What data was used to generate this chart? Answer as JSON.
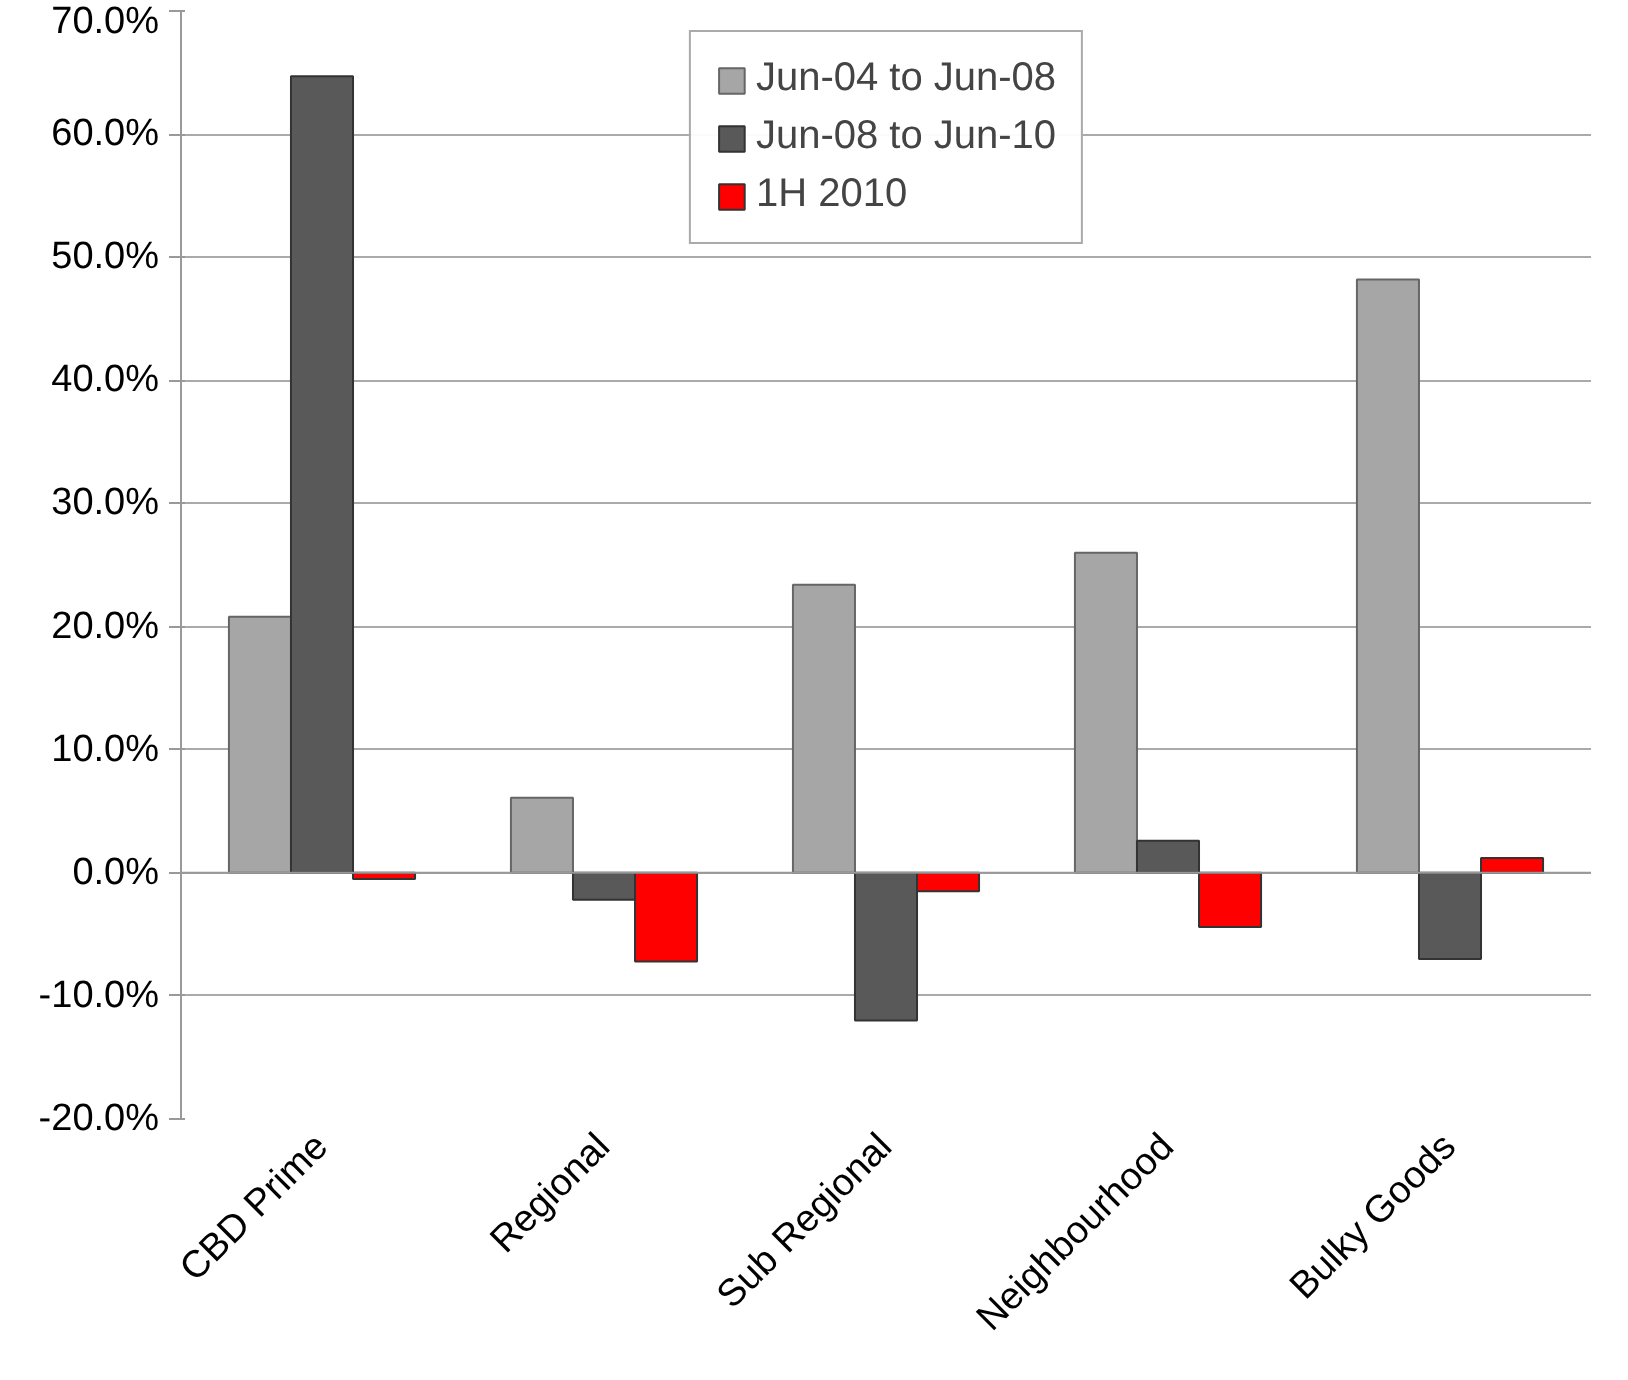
{
  "chart_data": {
    "type": "bar",
    "categories": [
      "CBD Prime",
      "Regional",
      "Sub Regional",
      "Neighbourhood",
      "Bulky Goods"
    ],
    "series": [
      {
        "name": "Jun-04 to Jun-08",
        "color": "#a6a6a6",
        "values": [
          20.8,
          6.1,
          23.4,
          26.0,
          48.2
        ]
      },
      {
        "name": "Jun-08 to Jun-10",
        "color": "#595959",
        "values": [
          64.7,
          -2.2,
          -12.0,
          2.6,
          -7.0
        ]
      },
      {
        "name": "1H 2010",
        "color": "#ff0000",
        "values": [
          -0.5,
          -7.2,
          -1.5,
          -4.4,
          1.2
        ]
      }
    ],
    "ylim": [
      -20,
      70
    ],
    "yticks": [
      {
        "value": -20,
        "label": "-20.0%"
      },
      {
        "value": -10,
        "label": "-10.0%"
      },
      {
        "value": 0,
        "label": "0.0%"
      },
      {
        "value": 10,
        "label": "10.0%"
      },
      {
        "value": 20,
        "label": "20.0%"
      },
      {
        "value": 30,
        "label": "30.0%"
      },
      {
        "value": 40,
        "label": "40.0%"
      },
      {
        "value": 50,
        "label": "50.0%"
      },
      {
        "value": 60,
        "label": "60.0%"
      },
      {
        "value": 70,
        "label": "70.0%"
      }
    ],
    "grid": "y",
    "legend": "top"
  }
}
